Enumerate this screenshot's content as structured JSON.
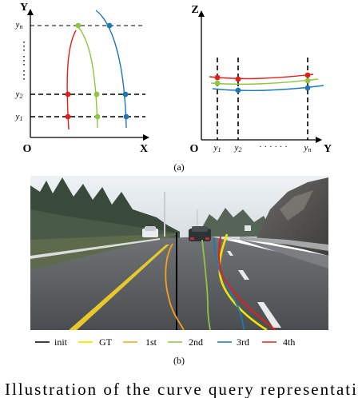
{
  "panel_a": {
    "caption": "(a)",
    "left": {
      "y_axis": "Y",
      "x_axis": "X",
      "origin": "O",
      "tick_n": "y",
      "tick_n_sub": "n",
      "tick_2": "y",
      "tick_2_sub": "2",
      "tick_1": "y",
      "tick_1_sub": "1",
      "ellipsis": "⋮"
    },
    "right": {
      "z_axis": "Z",
      "y_axis": "Y",
      "origin": "O",
      "tick_1": "y",
      "tick_1_sub": "1",
      "tick_2": "y",
      "tick_2_sub": "2",
      "dots": "· · · · · ·",
      "tick_n": "y",
      "tick_n_sub": "n"
    }
  },
  "panel_b": {
    "caption": "(b)",
    "legend": [
      {
        "label": "init",
        "color": "#000000"
      },
      {
        "label": "GT",
        "color": "#f2e600"
      },
      {
        "label": "1st",
        "color": "#f4a21e"
      },
      {
        "label": "2nd",
        "color": "#8ec63f"
      },
      {
        "label": "3rd",
        "color": "#1f77b4"
      },
      {
        "label": "4th",
        "color": "#e0201b"
      }
    ]
  },
  "body_text": "Illustration of the curve query representation"
}
